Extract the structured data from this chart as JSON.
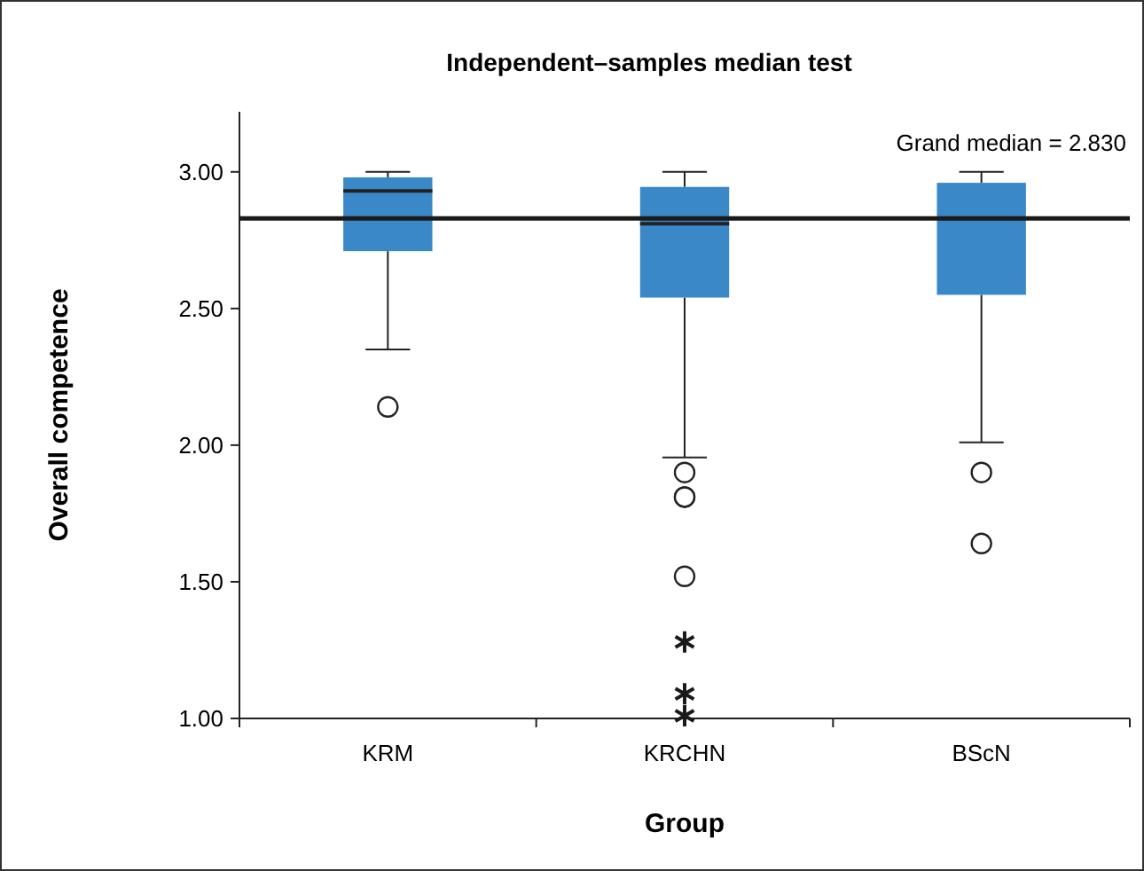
{
  "chart_data": {
    "type": "box",
    "title": "Independent–samples median test",
    "xlabel": "Group",
    "ylabel": "Overall competence",
    "categories": [
      "KRM",
      "KRCHN",
      "BScN"
    ],
    "series": [
      {
        "color": "#3a88c8",
        "boxes": [
          {
            "low": 2.35,
            "q1": 2.71,
            "median": 2.93,
            "q3": 2.98,
            "high": 3.0,
            "outliers": [
              2.14
            ]
          },
          {
            "low": 1.955,
            "q1": 2.54,
            "median": 2.81,
            "q3": 2.945,
            "high": 3.0,
            "outliers": [
              1.9,
              1.81,
              1.81,
              1.52
            ]
          },
          {
            "low": 2.01,
            "q1": 2.55,
            "median": 2.83,
            "q3": 2.96,
            "high": 3.0,
            "outliers": [
              1.9,
              1.64
            ]
          }
        ]
      },
      {
        "type": "scatter",
        "marker": "cross",
        "color": "#1a1a1a",
        "x": [
          "KRCHN",
          "KRCHN",
          "KRCHN"
        ],
        "values": [
          1.28,
          1.09,
          1.01
        ]
      }
    ],
    "ref_lines": [
      {
        "axis": "y",
        "value": 2.83,
        "label": "Grand median = 2.830",
        "color": "#1a1a1a"
      }
    ],
    "ylim": [
      1.0,
      3.22
    ],
    "yticks": [
      {
        "value": 1,
        "label": "1.00"
      },
      {
        "value": 1.5,
        "label": "1.50"
      },
      {
        "value": 2,
        "label": "2.00"
      },
      {
        "value": 2.5,
        "label": "2.50"
      },
      {
        "value": 3,
        "label": "3.00"
      }
    ],
    "grid": false
  }
}
